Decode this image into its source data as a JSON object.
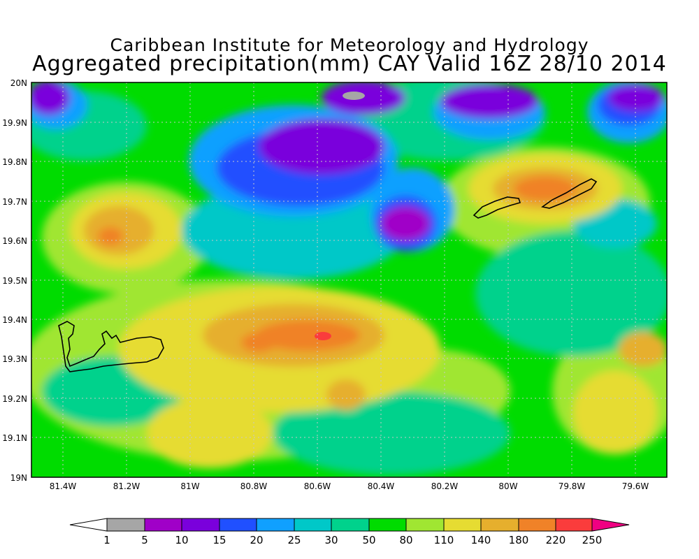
{
  "title_line1": "Caribbean Institute for Meteorology and Hydrology",
  "title_line2": "Aggregated precipitation(mm) CAY Valid 16Z 28/10 2014",
  "lat_labels": [
    "20N",
    "19.9N",
    "19.8N",
    "19.7N",
    "19.6N",
    "19.5N",
    "19.4N",
    "19.3N",
    "19.2N",
    "19.1N",
    "19N"
  ],
  "lon_labels": [
    "81.4W",
    "81.2W",
    "81W",
    "80.8W",
    "80.6W",
    "80.4W",
    "80.2W",
    "80W",
    "79.8W",
    "79.6W"
  ],
  "colorbar": {
    "labels": [
      "1",
      "5",
      "10",
      "15",
      "20",
      "25",
      "30",
      "50",
      "80",
      "110",
      "140",
      "180",
      "220",
      "250"
    ],
    "colors": [
      "#a6a6a6",
      "#a000c8",
      "#7a00dc",
      "#2050ff",
      "#10a0ff",
      "#00c8c8",
      "#00d28c",
      "#00dc00",
      "#a0e632",
      "#e6dc32",
      "#e6af2d",
      "#f08228",
      "#fa3c3c",
      "#f00082"
    ],
    "under_color": "#ffffff",
    "over_color": "#f00082"
  },
  "map": {
    "lon_range": [
      -81.5,
      -79.5
    ],
    "lat_range": [
      19.0,
      20.0
    ],
    "islands": [
      "Grand Cayman",
      "Little Cayman",
      "Cayman Brac"
    ]
  }
}
